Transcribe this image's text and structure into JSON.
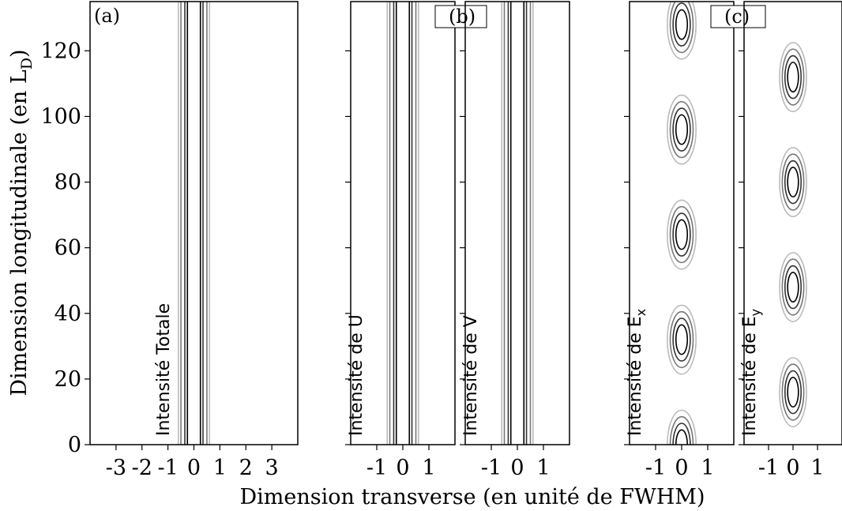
{
  "figure": {
    "ylabel_main": "Dimension longitudinale (en L",
    "ylabel_sub": "D",
    "ylabel_close": ")",
    "xlabel": "Dimension transverse (en unité de FWHM)"
  },
  "chart_data": [
    {
      "type": "contour",
      "panel_tag": "(a)",
      "label": "Intensité Totale",
      "label_sub": "",
      "xticks": [
        "-3",
        "-2",
        "-1",
        "0",
        "1",
        "2",
        "3"
      ],
      "xlim": [
        -4,
        4
      ],
      "ylim": [
        0,
        135
      ],
      "yticks": [
        "0",
        "20",
        "40",
        "60",
        "80",
        "100",
        "120"
      ],
      "pattern": "vertical-bands",
      "level_x_offsets": [
        0.25,
        0.35,
        0.5,
        0.6
      ],
      "level_colors": [
        "#000000",
        "#333333",
        "#777777",
        "#bbbbbb"
      ]
    },
    {
      "type": "contour",
      "panel_tag": "(b)",
      "label": "Intensité de U",
      "label_sub": "",
      "xticks": [
        "-1",
        "0",
        "1"
      ],
      "xlim": [
        -2,
        2
      ],
      "ylim": [
        0,
        135
      ],
      "pattern": "vertical-bands",
      "level_x_offsets": [
        0.25,
        0.35,
        0.5,
        0.6
      ],
      "level_colors": [
        "#000000",
        "#333333",
        "#777777",
        "#bbbbbb"
      ]
    },
    {
      "type": "contour",
      "panel_tag": "",
      "label": "Intensité de V",
      "label_sub": "",
      "xticks": [
        "-1",
        "0",
        "1"
      ],
      "xlim": [
        -2,
        2
      ],
      "ylim": [
        0,
        135
      ],
      "pattern": "vertical-bands",
      "level_x_offsets": [
        0.25,
        0.35,
        0.5,
        0.6
      ],
      "level_colors": [
        "#000000",
        "#333333",
        "#777777",
        "#bbbbbb"
      ]
    },
    {
      "type": "contour",
      "panel_tag": "(c)",
      "label": "Intensité de E",
      "label_sub": "x",
      "xticks": [
        "-1",
        "0",
        "1"
      ],
      "xlim": [
        -2,
        2
      ],
      "ylim": [
        0,
        135
      ],
      "pattern": "ellipses",
      "centers_y": [
        0,
        32,
        64,
        96,
        128
      ],
      "level_rx": [
        0.22,
        0.33,
        0.44,
        0.55
      ],
      "level_ry": [
        4.5,
        6.5,
        8.5,
        10.5
      ],
      "level_colors": [
        "#000000",
        "#333333",
        "#777777",
        "#bbbbbb"
      ]
    },
    {
      "type": "contour",
      "panel_tag": "",
      "label": "Intensité de E",
      "label_sub": "y",
      "xticks": [
        "-1",
        "0",
        "1"
      ],
      "xlim": [
        -2,
        2
      ],
      "ylim": [
        0,
        135
      ],
      "pattern": "ellipses",
      "centers_y": [
        16,
        48,
        80,
        112
      ],
      "level_rx": [
        0.22,
        0.33,
        0.44,
        0.55
      ],
      "level_ry": [
        4.5,
        6.5,
        8.5,
        10.5
      ],
      "level_colors": [
        "#000000",
        "#333333",
        "#777777",
        "#bbbbbb"
      ]
    }
  ]
}
